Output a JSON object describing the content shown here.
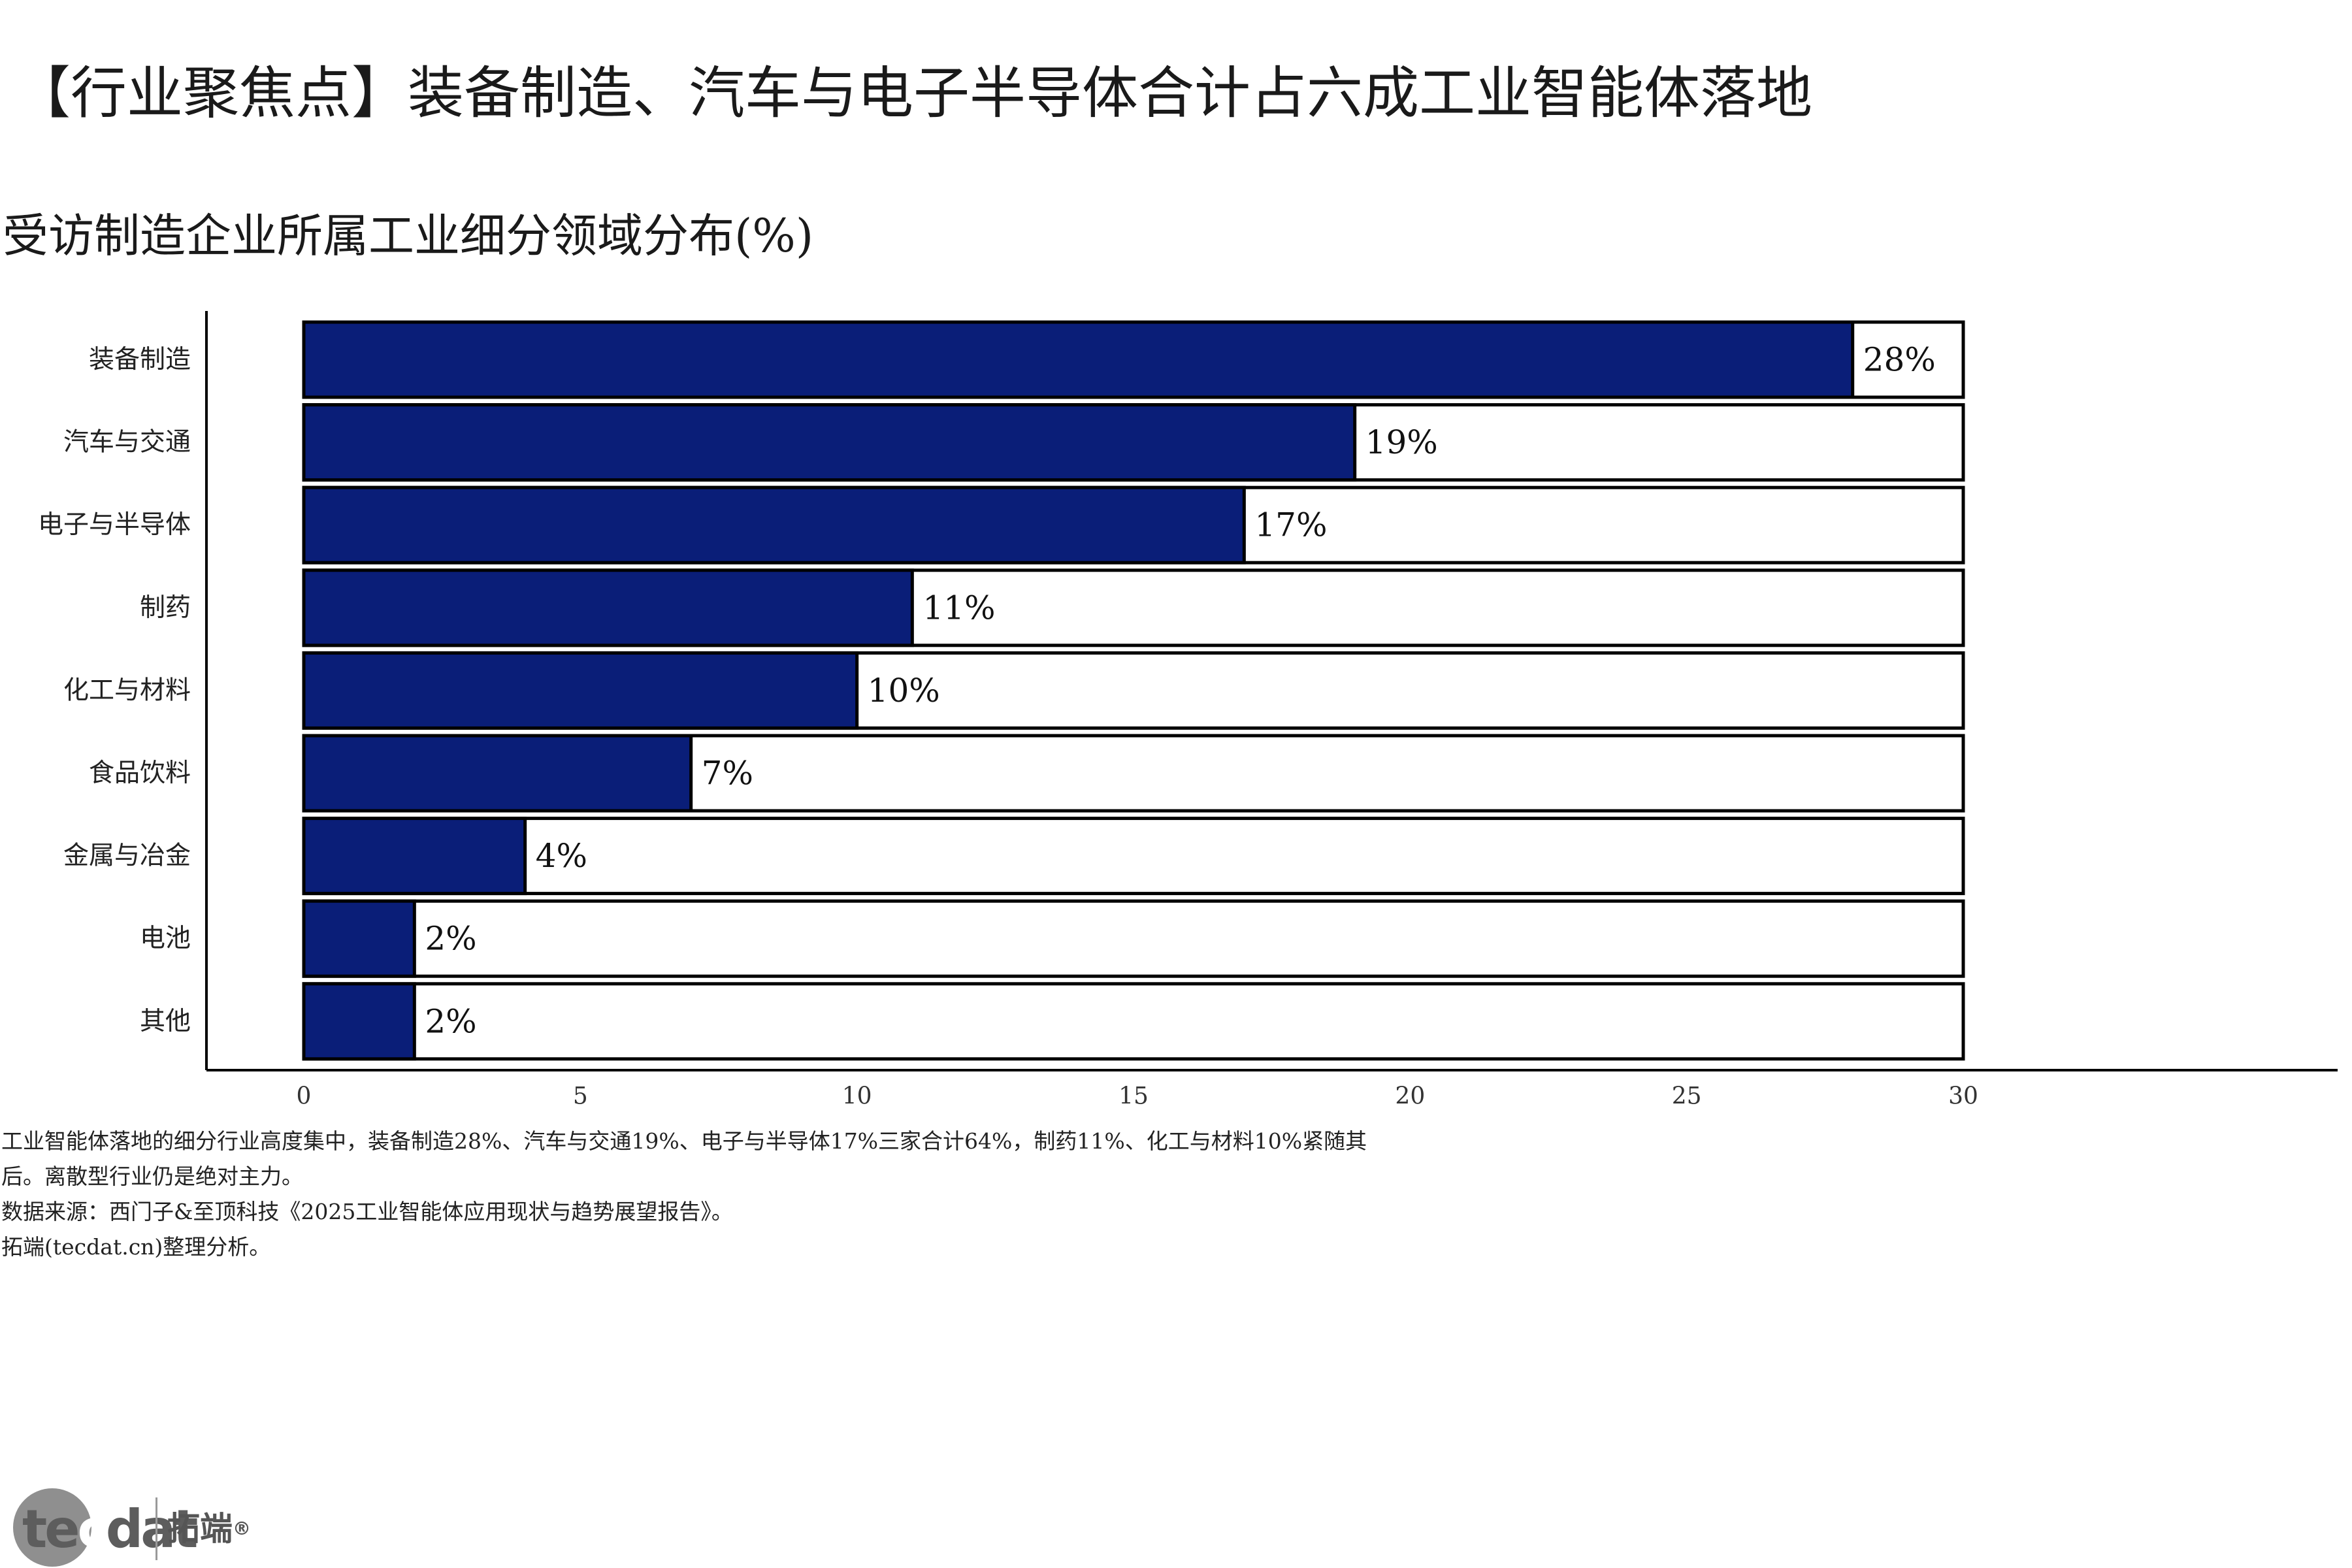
{
  "page": {
    "title": "【行业聚焦点】装备制造、汽车与电子半导体合计占六成工业智能体落地",
    "subtitle": "受访制造企业所属工业细分领域分布(%)",
    "notes": [
      "工业智能体落地的细分行业高度集中，装备制造28%、汽车与交通19%、电子与半导体17%三家合计64%，制药11%、化工与材料10%紧随其",
      "后。离散型行业仍是绝对主力。",
      "数据来源：西门子&至顶科技《2025工业智能体应用现状与趋势展望报告》。",
      "拓端(tecdat.cn)整理分析。"
    ],
    "logo": {
      "word_dark_1": "te",
      "word_light": "c",
      "word_dark_2": "dat",
      "cn": "拓端",
      "reg": "®"
    }
  },
  "chart_data": {
    "type": "bar",
    "orientation": "horizontal",
    "categories": [
      "装备制造",
      "汽车与交通",
      "电子与半导体",
      "制药",
      "化工与材料",
      "食品饮料",
      "金属与冶金",
      "电池",
      "其他"
    ],
    "values": [
      28,
      19,
      17,
      11,
      10,
      7,
      4,
      2,
      2
    ],
    "value_labels": [
      "28%",
      "19%",
      "17%",
      "11%",
      "10%",
      "7%",
      "4%",
      "2%",
      "2%"
    ],
    "background_bar_value": 30,
    "xlim": [
      0,
      30
    ],
    "xticks": [
      0,
      5,
      10,
      15,
      20,
      25,
      30
    ],
    "grid": false,
    "colors": {
      "bar": "#0a1e78",
      "background_bar": "#ffffff",
      "outline": "#000000",
      "axis": "#000000"
    }
  }
}
